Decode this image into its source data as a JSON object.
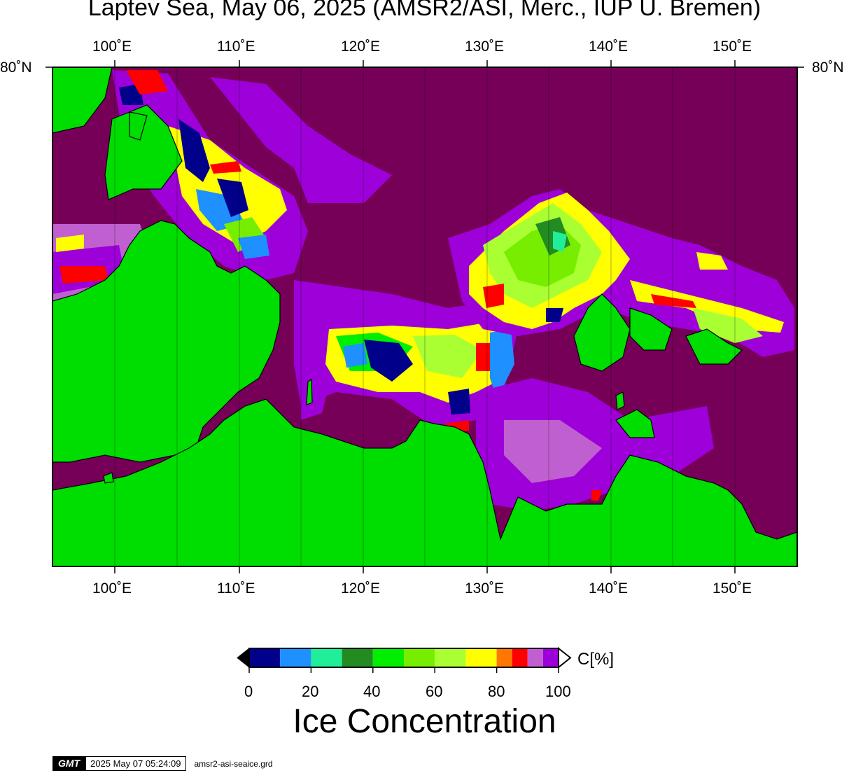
{
  "title": "Laptev Sea, May 06, 2025 (AMSR2/ASI, Merc., IUP U. Bremen)",
  "lon_ticks": [
    "100˚E",
    "110˚E",
    "120˚E",
    "130˚E",
    "140˚E",
    "150˚E"
  ],
  "lat_label": "80˚N",
  "colors": {
    "sea_high": "#760058",
    "land": "#00dd00",
    "ice_100": "#9d00d8",
    "ice_95": "#c060d0",
    "ice_90": "#ff0000",
    "ice_85": "#ff7700",
    "ice_80": "#ffff00",
    "ice_70": "#aaff33",
    "ice_60": "#77ee00",
    "ice_50": "#00ee00",
    "ice_40": "#228822",
    "ice_30": "#22ee99",
    "ice_20": "#2288ff",
    "ice_10": "#000088"
  },
  "colorbar": {
    "unit": "C[%]",
    "tick_labels": [
      "0",
      "20",
      "40",
      "60",
      "80",
      "100"
    ],
    "segments": [
      {
        "from": 0,
        "to": 10,
        "color": "#00008b"
      },
      {
        "from": 10,
        "to": 20,
        "color": "#1e90ff"
      },
      {
        "from": 20,
        "to": 30,
        "color": "#20ee99"
      },
      {
        "from": 30,
        "to": 40,
        "color": "#228b22"
      },
      {
        "from": 40,
        "to": 50,
        "color": "#00ee00"
      },
      {
        "from": 50,
        "to": 60,
        "color": "#77ee00"
      },
      {
        "from": 60,
        "to": 70,
        "color": "#aaff33"
      },
      {
        "from": 70,
        "to": 80,
        "color": "#ffff00"
      },
      {
        "from": 80,
        "to": 85,
        "color": "#ff7700"
      },
      {
        "from": 85,
        "to": 90,
        "color": "#ff0000"
      },
      {
        "from": 90,
        "to": 95,
        "color": "#c060d0"
      },
      {
        "from": 95,
        "to": 100,
        "color": "#9d00d8"
      }
    ]
  },
  "big_title": "Ice Concentration",
  "footer": {
    "logo": "GMT",
    "timestamp": "2025 May 07 05:24:09",
    "filename": "amsr2-asi-seaice.grd"
  }
}
